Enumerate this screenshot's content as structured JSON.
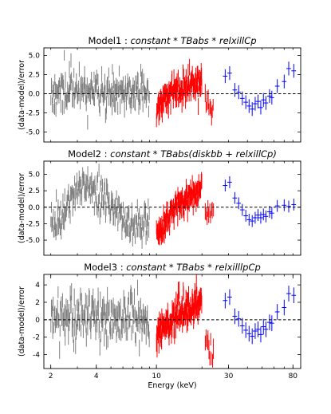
{
  "chart_data": [
    {
      "type": "scatter",
      "title_plain": "Model1 : ",
      "title_model": "constant * TBabs * relxillCp",
      "ylabel": "(data-model)/error",
      "xlabel": "",
      "x_scale": "log",
      "xlim": [
        1.8,
        90
      ],
      "ylim": [
        -6.3,
        6.0
      ],
      "yticks": [
        -5.0,
        -2.5,
        0.0,
        2.5,
        5.0
      ],
      "ytick_labels": [
        "-5.0",
        "-2.5",
        "0.0",
        "2.5",
        "5.0"
      ],
      "reference_line": 0,
      "series": [
        {
          "color": "#808080",
          "x_range": [
            2.0,
            9.0
          ],
          "n": 220,
          "trend": [
            [
              2.0,
              0.4
            ],
            [
              5.0,
              0.4
            ],
            [
              9.0,
              0.2
            ]
          ],
          "spread": 1.3,
          "err": 0.9,
          "seed": 11
        },
        {
          "color": "#ff0000",
          "x_range": [
            10.0,
            20.0
          ],
          "n": 170,
          "trend": [
            [
              10.0,
              -2.3
            ],
            [
              11.0,
              -0.8
            ],
            [
              13.0,
              0.3
            ],
            [
              20.0,
              1.8
            ]
          ],
          "spread": 0.9,
          "err": 0.9,
          "seed": 23
        },
        {
          "color": "#ff0000",
          "x_range": [
            21.0,
            24.0
          ],
          "n": 10,
          "trend": [
            [
              21.0,
              -1.6
            ],
            [
              24.0,
              -1.8
            ]
          ],
          "spread": 0.8,
          "err": 1.0,
          "seed": 31
        },
        {
          "color": "#0000ff",
          "points": [
            [
              28.5,
              2.3
            ],
            [
              30.5,
              2.7
            ],
            [
              33,
              0.5
            ],
            [
              35,
              0.2
            ],
            [
              37,
              -0.6
            ],
            [
              39,
              -1.1
            ],
            [
              41,
              -1.6
            ],
            [
              43,
              -2.0
            ],
            [
              45,
              -1.3
            ],
            [
              47,
              -1.0
            ],
            [
              49,
              -1.8
            ],
            [
              51,
              -0.8
            ],
            [
              53,
              -1.2
            ],
            [
              56,
              -0.3
            ],
            [
              58,
              -0.5
            ],
            [
              63,
              1.0
            ],
            [
              70,
              1.6
            ],
            [
              75,
              3.3
            ],
            [
              81,
              3.0
            ]
          ],
          "yerr": 0.9
        }
      ]
    },
    {
      "type": "scatter",
      "title_plain": "Model2 : ",
      "title_model": "constant * TBabs(diskbb + relxillCp)",
      "ylabel": "(data-model)/error",
      "xlabel": "",
      "x_scale": "log",
      "xlim": [
        1.8,
        90
      ],
      "ylim": [
        -7.3,
        7.0
      ],
      "yticks": [
        -5.0,
        -2.5,
        0.0,
        2.5,
        5.0
      ],
      "ytick_labels": [
        "-5.0",
        "-2.5",
        "0.0",
        "2.5",
        "5.0"
      ],
      "reference_line": 0,
      "series": [
        {
          "color": "#808080",
          "x_range": [
            2.0,
            9.0
          ],
          "n": 220,
          "trend": [
            [
              2.0,
              -2.3
            ],
            [
              2.5,
              -1.0
            ],
            [
              3.0,
              2.8
            ],
            [
              3.6,
              3.3
            ],
            [
              4.5,
              1.2
            ],
            [
              6.0,
              -2.2
            ],
            [
              7.5,
              -2.8
            ],
            [
              9.0,
              -2.5
            ]
          ],
          "spread": 1.4,
          "err": 1.0,
          "seed": 41
        },
        {
          "color": "#ff0000",
          "x_range": [
            10.0,
            20.0
          ],
          "n": 170,
          "trend": [
            [
              10.0,
              -4.8
            ],
            [
              11.0,
              -3.0
            ],
            [
              13.0,
              -0.5
            ],
            [
              16.0,
              1.5
            ],
            [
              20.0,
              2.8
            ]
          ],
          "spread": 1.0,
          "err": 1.0,
          "seed": 53
        },
        {
          "color": "#ff0000",
          "x_range": [
            21.0,
            24.0
          ],
          "n": 10,
          "trend": [
            [
              21.0,
              -0.3
            ],
            [
              24.0,
              -0.6
            ]
          ],
          "spread": 0.6,
          "err": 1.0,
          "seed": 61
        },
        {
          "color": "#0000ff",
          "points": [
            [
              28.5,
              3.3
            ],
            [
              30.5,
              3.8
            ],
            [
              33,
              1.4
            ],
            [
              35,
              0.6
            ],
            [
              37,
              -0.4
            ],
            [
              39,
              -1.3
            ],
            [
              41,
              -1.9
            ],
            [
              43,
              -2.1
            ],
            [
              45,
              -1.6
            ],
            [
              47,
              -1.2
            ],
            [
              49,
              -1.6
            ],
            [
              51,
              -1.1
            ],
            [
              53,
              -1.4
            ],
            [
              56,
              -0.7
            ],
            [
              58,
              -0.9
            ],
            [
              63,
              0.2
            ],
            [
              70,
              0.3
            ],
            [
              75,
              0.1
            ],
            [
              81,
              0.4
            ]
          ],
          "yerr": 0.9
        }
      ]
    },
    {
      "type": "scatter",
      "title_plain": "Model3 : ",
      "title_model": "constant * TBabs * relxilllpCp",
      "ylabel": "(data-model)/error",
      "xlabel": "Energy (keV)",
      "x_scale": "log",
      "xlim": [
        1.8,
        90
      ],
      "ylim": [
        -5.6,
        5.2
      ],
      "yticks": [
        -4,
        -2,
        0,
        2,
        4
      ],
      "ytick_labels": [
        "-4",
        "-2",
        "0",
        "2",
        "4"
      ],
      "reference_line": 0,
      "xticks": [
        2,
        4,
        10,
        30,
        80
      ],
      "xtick_labels": [
        "2",
        "4",
        "10",
        "30",
        "80"
      ],
      "series": [
        {
          "color": "#808080",
          "x_range": [
            2.0,
            9.0
          ],
          "n": 220,
          "trend": [
            [
              2.0,
              0.3
            ],
            [
              5.0,
              0.3
            ],
            [
              9.0,
              0.0
            ]
          ],
          "spread": 1.3,
          "err": 0.9,
          "seed": 71
        },
        {
          "color": "#ff0000",
          "x_range": [
            10.0,
            20.0
          ],
          "n": 170,
          "trend": [
            [
              10.0,
              -2.3
            ],
            [
              11.0,
              -0.8
            ],
            [
              13.0,
              0.3
            ],
            [
              20.0,
              2.2
            ]
          ],
          "spread": 0.9,
          "err": 0.9,
          "seed": 83
        },
        {
          "color": "#ff0000",
          "x_range": [
            21.0,
            24.0
          ],
          "n": 10,
          "trend": [
            [
              21.0,
              -2.8
            ],
            [
              24.0,
              -3.6
            ]
          ],
          "spread": 0.7,
          "err": 1.0,
          "seed": 97
        },
        {
          "color": "#0000ff",
          "points": [
            [
              28.5,
              2.2
            ],
            [
              30.5,
              2.6
            ],
            [
              33,
              0.4
            ],
            [
              35,
              0.1
            ],
            [
              37,
              -0.7
            ],
            [
              39,
              -1.2
            ],
            [
              41,
              -1.6
            ],
            [
              43,
              -1.9
            ],
            [
              45,
              -1.3
            ],
            [
              47,
              -1.1
            ],
            [
              49,
              -1.7
            ],
            [
              51,
              -0.8
            ],
            [
              53,
              -1.1
            ],
            [
              56,
              -0.3
            ],
            [
              58,
              -0.4
            ],
            [
              63,
              0.9
            ],
            [
              70,
              1.4
            ],
            [
              75,
              3.0
            ],
            [
              81,
              2.8
            ]
          ],
          "yerr": 0.9
        }
      ]
    }
  ]
}
